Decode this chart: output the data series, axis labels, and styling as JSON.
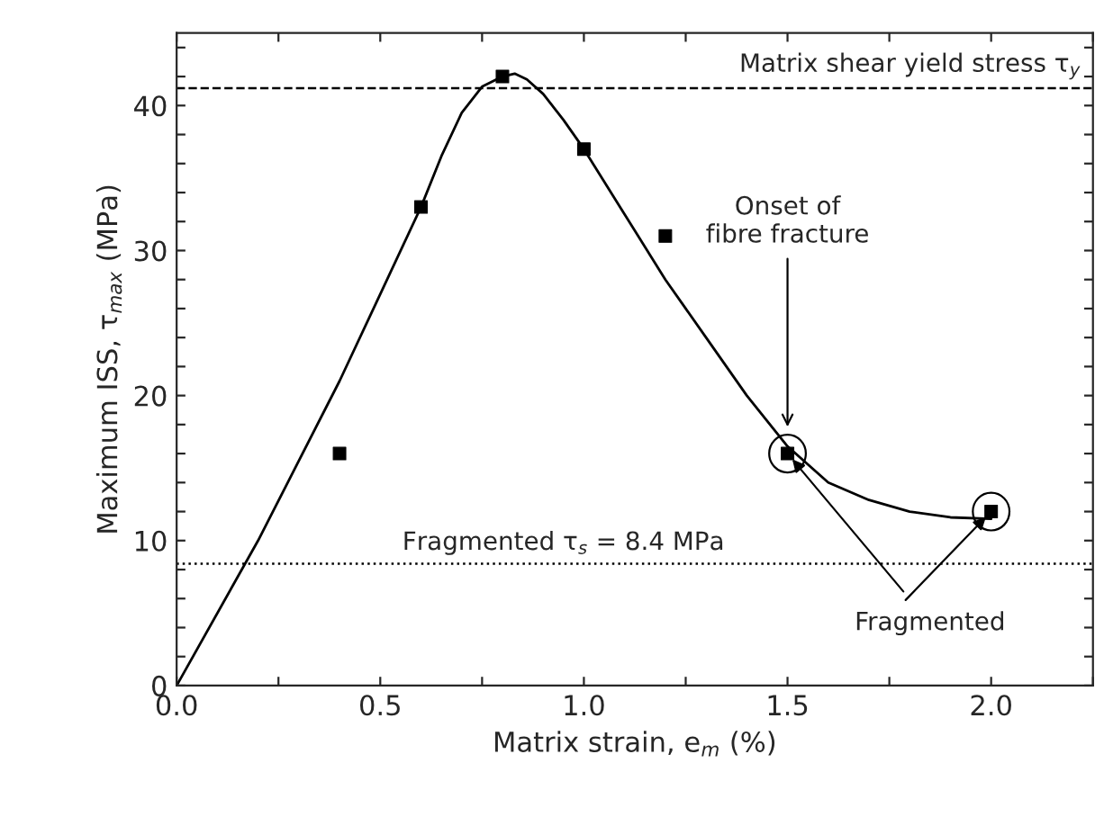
{
  "chart_data": {
    "type": "scatter",
    "xlabel": "Matrix strain, e$_{m}$ (%)",
    "ylabel": "Maximum ISS, τ$_{max}$ (MPa)",
    "xlim": [
      0,
      2.25
    ],
    "ylim": [
      0,
      45
    ],
    "xticks": [
      {
        "value": 0,
        "label": "0.0"
      },
      {
        "value": 0.25,
        "label": null
      },
      {
        "value": 0.5,
        "label": "0.5"
      },
      {
        "value": 0.75,
        "label": null
      },
      {
        "value": 1,
        "label": "1.0"
      },
      {
        "value": 1.25,
        "label": null
      },
      {
        "value": 1.5,
        "label": "1.5"
      },
      {
        "value": 1.75,
        "label": null
      },
      {
        "value": 2,
        "label": "2.0"
      },
      {
        "value": 2.25,
        "label": null
      }
    ],
    "yticks": [
      0,
      {
        "value": 2,
        "label": null
      },
      {
        "value": 4,
        "label": null
      },
      {
        "value": 6,
        "label": null
      },
      {
        "value": 8,
        "label": null
      },
      10,
      {
        "value": 12,
        "label": null
      },
      {
        "value": 14,
        "label": null
      },
      {
        "value": 16,
        "label": null
      },
      {
        "value": 18,
        "label": null
      },
      20,
      {
        "value": 22,
        "label": null
      },
      {
        "value": 24,
        "label": null
      },
      {
        "value": 26,
        "label": null
      },
      {
        "value": 28,
        "label": null
      },
      30,
      {
        "value": 32,
        "label": null
      },
      {
        "value": 34,
        "label": null
      },
      {
        "value": 36,
        "label": null
      },
      {
        "value": 38,
        "label": null
      },
      40,
      {
        "value": 42,
        "label": null
      },
      {
        "value": 44,
        "label": null
      }
    ],
    "grid": false,
    "legend": false,
    "series": [
      {
        "marker": "square",
        "color": "#000000",
        "x": [
          0.4,
          0.6,
          0.8,
          1.0,
          1.2,
          1.5,
          2.0
        ],
        "values": [
          16,
          33,
          42,
          37,
          31,
          16,
          12
        ]
      },
      {
        "type": "line",
        "marker": "none",
        "line_style": "solid",
        "color": "#000000",
        "x": [
          0,
          0.2,
          0.4,
          0.5,
          0.6,
          0.65,
          0.7,
          0.75,
          0.8,
          0.83,
          0.86,
          0.9,
          0.95,
          1.0,
          1.1,
          1.2,
          1.3,
          1.4,
          1.5,
          1.6,
          1.7,
          1.8,
          1.9,
          2.0
        ],
        "values": [
          0,
          10,
          21,
          27,
          33,
          36.5,
          39.5,
          41.3,
          42,
          42.2,
          41.8,
          40.8,
          39,
          37,
          32.5,
          28,
          24,
          20,
          16.5,
          14,
          12.8,
          12,
          11.6,
          11.5
        ]
      }
    ],
    "ref_lines": [
      {
        "axis": "y",
        "value": 41.2,
        "label": "Matrix shear yield stress τ$_{y}$",
        "line_style": "dashed",
        "color": "#000000"
      },
      {
        "axis": "y",
        "value": 8.4,
        "label": "Fragmented τ$_{s}$ = 8.4 MPa",
        "line_style": "dotted",
        "color": "#000000"
      }
    ],
    "annotations": [
      {
        "text": "Onset of\nfibre fracture",
        "x": 1.5,
        "y": 17.5
      },
      {
        "text": "Fragmented",
        "x": 1.5,
        "y": 16
      }
    ]
  }
}
